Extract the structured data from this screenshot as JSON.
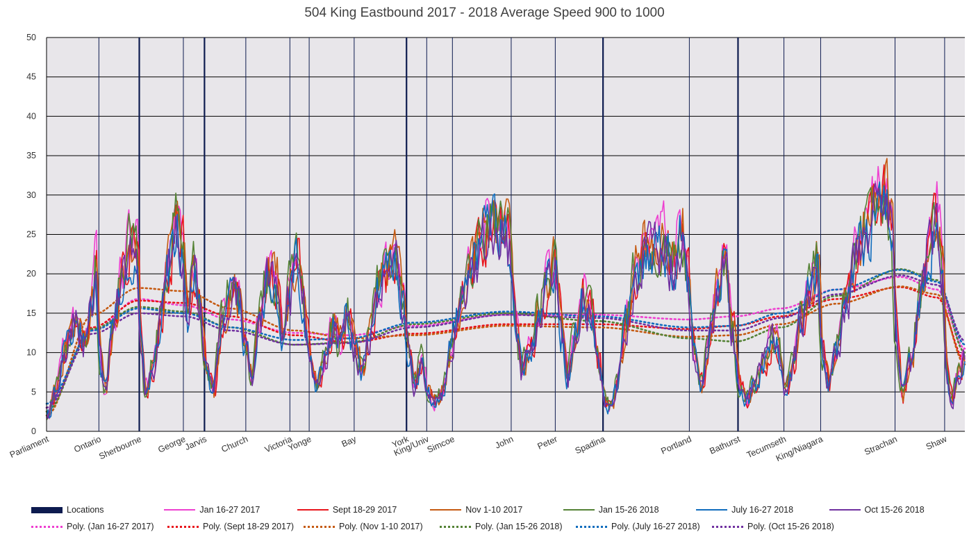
{
  "chart_data": {
    "type": "line",
    "title": "504 King Eastbound 2017 - 2018 Average Speed 900 to 1000",
    "xlabel": "",
    "ylabel": "",
    "ylim": [
      0,
      50
    ],
    "yticks": [
      0,
      5,
      10,
      15,
      20,
      25,
      30,
      35,
      40,
      45,
      50
    ],
    "x_range": [
      0,
      100
    ],
    "grid": true,
    "legend_position": "bottom",
    "plot_background": "#e8e6ea",
    "location_ticks": [
      {
        "label": "Parliament",
        "x": 0
      },
      {
        "label": "Ontario",
        "x": 5.7
      },
      {
        "label": "Sherbourne",
        "x": 10.1
      },
      {
        "label": "George",
        "x": 14.9
      },
      {
        "label": "Jarvis",
        "x": 17.2
      },
      {
        "label": "Church",
        "x": 21.7
      },
      {
        "label": "Victoria",
        "x": 26.5
      },
      {
        "label": "Yonge",
        "x": 28.6
      },
      {
        "label": "Bay",
        "x": 33.5
      },
      {
        "label": "York",
        "x": 39.2
      },
      {
        "label": "King/Univ",
        "x": 41.4
      },
      {
        "label": "Simcoe",
        "x": 44.2
      },
      {
        "label": "John",
        "x": 50.6
      },
      {
        "label": "Peter",
        "x": 55.4
      },
      {
        "label": "Spadina",
        "x": 60.6
      },
      {
        "label": "Portland",
        "x": 70.0
      },
      {
        "label": "Bathurst",
        "x": 75.3
      },
      {
        "label": "Tecumseth",
        "x": 80.3
      },
      {
        "label": "King/Niagara",
        "x": 84.3
      },
      {
        "label": "Strachan",
        "x": 92.4
      },
      {
        "label": "Shaw",
        "x": 97.8
      }
    ],
    "major_location_x": [
      10.1,
      17.2,
      39.2,
      60.6,
      75.3
    ],
    "series": [
      {
        "name": "Jan 16-27 2017",
        "color": "#ee3fd0",
        "style": "solid",
        "seed": 11,
        "amp": 1.05
      },
      {
        "name": "Sept 18-29 2017",
        "color": "#e8141b",
        "style": "solid",
        "seed": 23,
        "amp": 1.0
      },
      {
        "name": "Nov 1-10 2017",
        "color": "#c55a11",
        "style": "solid",
        "seed": 37,
        "amp": 1.03
      },
      {
        "name": "Jan 15-26 2018",
        "color": "#548235",
        "style": "solid",
        "seed": 41,
        "amp": 1.02
      },
      {
        "name": "July 16-27 2018",
        "color": "#0f6cbd",
        "style": "solid",
        "seed": 53,
        "amp": 0.98
      },
      {
        "name": "Oct 15-26 2018",
        "color": "#7030a0",
        "style": "solid",
        "seed": 67,
        "amp": 0.97
      }
    ],
    "trend_lines": [
      {
        "name": "Poly. (Jan 16-27 2017)",
        "color": "#ee3fd0",
        "points": [
          [
            0,
            3
          ],
          [
            5,
            12.8
          ],
          [
            10,
            16.8
          ],
          [
            15,
            16.0
          ],
          [
            20,
            14.2
          ],
          [
            27,
            12.5
          ],
          [
            33,
            12.2
          ],
          [
            40,
            13.4
          ],
          [
            50,
            14.8
          ],
          [
            60,
            14.8
          ],
          [
            70,
            14.2
          ],
          [
            75,
            14.6
          ],
          [
            80,
            15.6
          ],
          [
            86,
            18.0
          ],
          [
            93,
            19.6
          ],
          [
            97,
            18.0
          ],
          [
            100,
            10.5
          ]
        ]
      },
      {
        "name": "Poly. (Sept 18-29 2017)",
        "color": "#e8141b",
        "points": [
          [
            0,
            2.5
          ],
          [
            5,
            13.2
          ],
          [
            10,
            16.6
          ],
          [
            15,
            16.3
          ],
          [
            20,
            14.6
          ],
          [
            27,
            12.2
          ],
          [
            33,
            11.3
          ],
          [
            40,
            12.4
          ],
          [
            50,
            13.6
          ],
          [
            60,
            13.6
          ],
          [
            70,
            13.0
          ],
          [
            75,
            13.4
          ],
          [
            80,
            14.6
          ],
          [
            86,
            16.8
          ],
          [
            93,
            18.3
          ],
          [
            97,
            17.0
          ],
          [
            100,
            9.0
          ]
        ]
      },
      {
        "name": "Poly. (Nov 1-10 2017)",
        "color": "#c55a11",
        "points": [
          [
            0,
            2.0
          ],
          [
            5,
            14.8
          ],
          [
            10,
            18.2
          ],
          [
            15,
            17.8
          ],
          [
            20,
            15.6
          ],
          [
            27,
            12.8
          ],
          [
            33,
            11.8
          ],
          [
            40,
            12.2
          ],
          [
            50,
            13.4
          ],
          [
            60,
            13.2
          ],
          [
            70,
            12.0
          ],
          [
            75,
            12.2
          ],
          [
            80,
            13.6
          ],
          [
            86,
            16.2
          ],
          [
            93,
            18.4
          ],
          [
            97,
            17.4
          ],
          [
            100,
            8.5
          ]
        ]
      },
      {
        "name": "Poly. (Jan 15-26 2018)",
        "color": "#548235",
        "points": [
          [
            0,
            2.5
          ],
          [
            5,
            13.0
          ],
          [
            10,
            15.8
          ],
          [
            15,
            15.2
          ],
          [
            20,
            13.2
          ],
          [
            27,
            11.0
          ],
          [
            33,
            11.3
          ],
          [
            40,
            13.6
          ],
          [
            50,
            15.0
          ],
          [
            60,
            14.0
          ],
          [
            70,
            11.8
          ],
          [
            75,
            11.4
          ],
          [
            80,
            13.2
          ],
          [
            86,
            17.2
          ],
          [
            93,
            20.6
          ],
          [
            97,
            19.2
          ],
          [
            100,
            10.0
          ]
        ]
      },
      {
        "name": "Poly. (July 16-27 2018)",
        "color": "#0f6cbd",
        "points": [
          [
            0,
            3.5
          ],
          [
            5,
            12.8
          ],
          [
            10,
            15.6
          ],
          [
            15,
            15.0
          ],
          [
            20,
            13.2
          ],
          [
            27,
            11.6
          ],
          [
            33,
            11.8
          ],
          [
            40,
            13.8
          ],
          [
            50,
            15.2
          ],
          [
            60,
            14.6
          ],
          [
            70,
            13.2
          ],
          [
            75,
            13.4
          ],
          [
            80,
            15.0
          ],
          [
            86,
            18.0
          ],
          [
            93,
            20.5
          ],
          [
            97,
            19.0
          ],
          [
            100,
            11.0
          ]
        ]
      },
      {
        "name": "Poly. (Oct 15-26 2018)",
        "color": "#7030a0",
        "points": [
          [
            0,
            3.0
          ],
          [
            5,
            12.4
          ],
          [
            10,
            15.0
          ],
          [
            15,
            14.6
          ],
          [
            20,
            12.8
          ],
          [
            27,
            11.0
          ],
          [
            33,
            11.2
          ],
          [
            40,
            13.2
          ],
          [
            50,
            14.8
          ],
          [
            60,
            14.4
          ],
          [
            70,
            12.8
          ],
          [
            75,
            12.8
          ],
          [
            80,
            14.4
          ],
          [
            86,
            17.4
          ],
          [
            93,
            19.8
          ],
          [
            97,
            18.6
          ],
          [
            100,
            11.5
          ]
        ]
      }
    ],
    "speed_profile": [
      [
        0,
        2
      ],
      [
        0.8,
        5
      ],
      [
        2,
        11
      ],
      [
        3,
        14
      ],
      [
        4,
        11
      ],
      [
        4.8,
        16
      ],
      [
        5.2,
        21
      ],
      [
        5.7,
        9
      ],
      [
        6.2,
        5
      ],
      [
        7,
        12
      ],
      [
        8,
        19
      ],
      [
        9,
        24
      ],
      [
        9.7,
        22
      ],
      [
        10.1,
        11
      ],
      [
        10.6,
        5
      ],
      [
        11.4,
        8
      ],
      [
        12.2,
        14
      ],
      [
        13,
        21
      ],
      [
        14,
        26
      ],
      [
        14.6,
        24
      ],
      [
        15.2,
        14
      ],
      [
        15.8,
        21
      ],
      [
        16.5,
        16
      ],
      [
        17.2,
        8
      ],
      [
        18,
        5
      ],
      [
        19,
        14
      ],
      [
        20,
        18
      ],
      [
        20.8,
        16
      ],
      [
        21.5,
        11
      ],
      [
        22.2,
        7
      ],
      [
        23,
        14
      ],
      [
        24,
        20
      ],
      [
        24.8,
        19
      ],
      [
        25.6,
        12
      ],
      [
        26.3,
        18
      ],
      [
        27.1,
        22
      ],
      [
        27.7,
        17
      ],
      [
        28.6,
        9
      ],
      [
        29.3,
        6
      ],
      [
        30.2,
        9
      ],
      [
        31,
        13
      ],
      [
        31.8,
        11
      ],
      [
        32.6,
        15
      ],
      [
        33.5,
        10
      ],
      [
        34.2,
        8
      ],
      [
        35,
        12
      ],
      [
        36,
        18
      ],
      [
        37,
        20
      ],
      [
        37.8,
        22
      ],
      [
        38.5,
        17
      ],
      [
        39.2,
        11
      ],
      [
        39.9,
        6
      ],
      [
        40.7,
        9
      ],
      [
        41.4,
        5
      ],
      [
        42.1,
        3.5
      ],
      [
        43,
        5
      ],
      [
        43.8,
        10
      ],
      [
        44.6,
        15
      ],
      [
        45.5,
        19
      ],
      [
        46.5,
        22
      ],
      [
        47.5,
        25
      ],
      [
        48.5,
        26
      ],
      [
        49.5,
        25
      ],
      [
        50.3,
        24
      ],
      [
        50.9,
        14
      ],
      [
        51.6,
        8
      ],
      [
        52.5,
        10
      ],
      [
        53.5,
        15
      ],
      [
        54.5,
        19
      ],
      [
        55.2,
        21
      ],
      [
        55.9,
        13
      ],
      [
        56.6,
        7
      ],
      [
        57.4,
        12
      ],
      [
        58.3,
        17
      ],
      [
        59.2,
        15
      ],
      [
        59.9,
        9
      ],
      [
        60.6,
        4
      ],
      [
        61.3,
        3
      ],
      [
        62,
        6
      ],
      [
        63,
        14
      ],
      [
        64,
        20
      ],
      [
        65,
        24
      ],
      [
        66,
        23
      ],
      [
        67,
        24
      ],
      [
        68,
        21
      ],
      [
        69,
        25
      ],
      [
        69.6,
        21
      ],
      [
        70.4,
        10
      ],
      [
        71.2,
        6
      ],
      [
        72,
        12
      ],
      [
        73,
        18
      ],
      [
        73.8,
        21
      ],
      [
        74.5,
        13
      ],
      [
        75.3,
        6
      ],
      [
        76,
        4
      ],
      [
        77,
        6
      ],
      [
        78,
        9
      ],
      [
        79,
        12
      ],
      [
        79.7,
        10
      ],
      [
        80.3,
        5
      ],
      [
        81,
        8
      ],
      [
        82,
        14
      ],
      [
        83,
        19
      ],
      [
        83.8,
        21
      ],
      [
        84.3,
        10
      ],
      [
        85,
        6
      ],
      [
        86,
        11
      ],
      [
        87,
        17
      ],
      [
        88,
        22
      ],
      [
        89,
        25
      ],
      [
        90,
        28
      ],
      [
        91,
        29
      ],
      [
        91.8,
        27
      ],
      [
        92.4,
        12
      ],
      [
        93,
        5
      ],
      [
        94,
        9
      ],
      [
        95,
        17
      ],
      [
        96,
        24
      ],
      [
        96.8,
        27
      ],
      [
        97.4,
        21
      ],
      [
        97.8,
        8
      ],
      [
        98.4,
        4
      ],
      [
        99.2,
        7
      ],
      [
        100,
        10
      ]
    ]
  },
  "legend": {
    "locations_label": "Locations",
    "locations_color": "#0d1b4f"
  }
}
